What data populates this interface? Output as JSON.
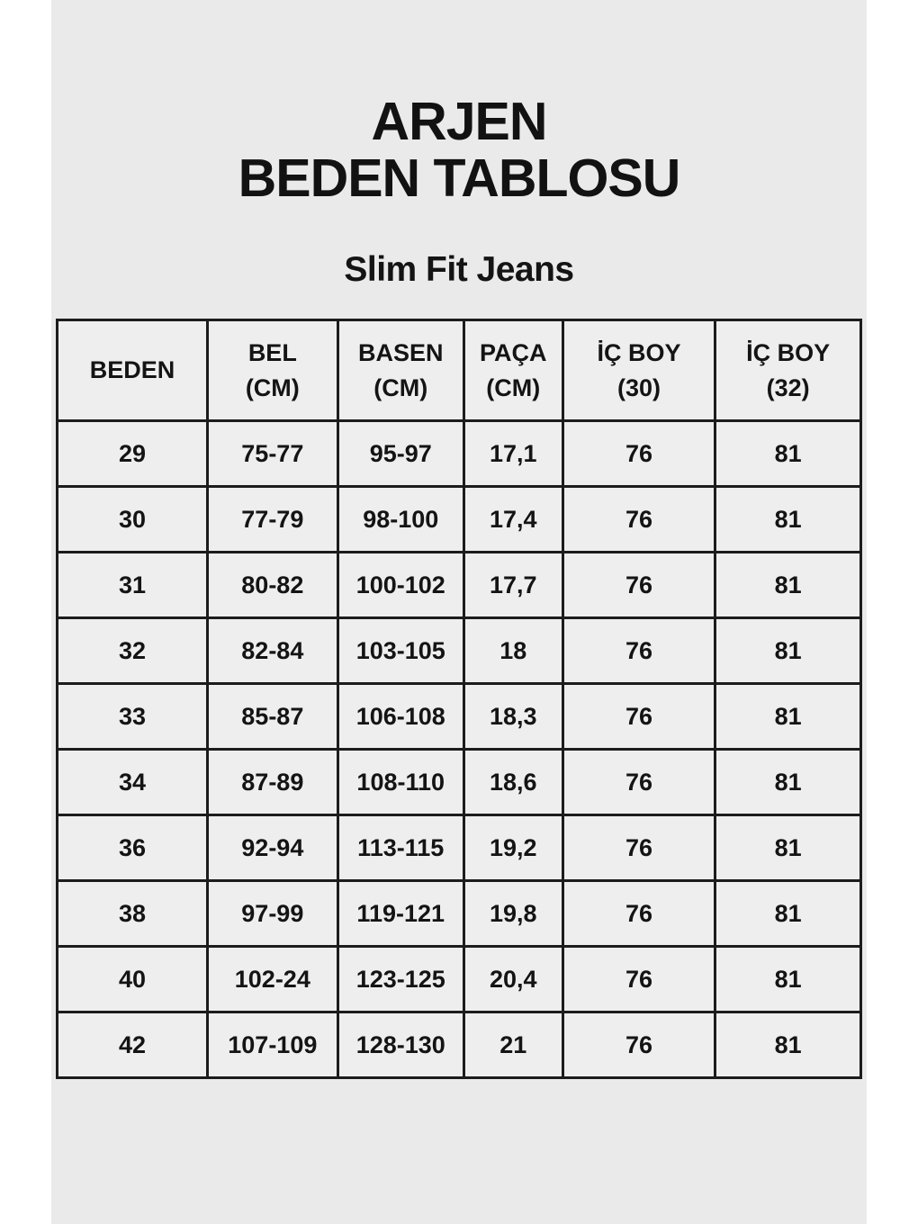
{
  "page": {
    "title_line1": "ARJEN",
    "title_line2": "BEDEN TABLOSU",
    "subtitle": "Slim Fit Jeans"
  },
  "table": {
    "headers": [
      {
        "lines": [
          "BEDEN"
        ]
      },
      {
        "lines": [
          "BEL",
          "(CM)"
        ]
      },
      {
        "lines": [
          "BASEN",
          "(CM)"
        ]
      },
      {
        "lines": [
          "PAÇA",
          "(CM)"
        ]
      },
      {
        "lines": [
          "İÇ BOY",
          "(30)"
        ]
      },
      {
        "lines": [
          "İÇ BOY",
          "(32)"
        ]
      }
    ],
    "rows": [
      [
        "29",
        "75-77",
        "95-97",
        "17,1",
        "76",
        "81"
      ],
      [
        "30",
        "77-79",
        "98-100",
        "17,4",
        "76",
        "81"
      ],
      [
        "31",
        "80-82",
        "100-102",
        "17,7",
        "76",
        "81"
      ],
      [
        "32",
        "82-84",
        "103-105",
        "18",
        "76",
        "81"
      ],
      [
        "33",
        "85-87",
        "106-108",
        "18,3",
        "76",
        "81"
      ],
      [
        "34",
        "87-89",
        "108-110",
        "18,6",
        "76",
        "81"
      ],
      [
        "36",
        "92-94",
        "113-115",
        "19,2",
        "76",
        "81"
      ],
      [
        "38",
        "97-99",
        "119-121",
        "19,8",
        "76",
        "81"
      ],
      [
        "40",
        "102-24",
        "123-125",
        "20,4",
        "76",
        "81"
      ],
      [
        "42",
        "107-109",
        "128-130",
        "21",
        "76",
        "81"
      ]
    ]
  },
  "colors": {
    "page_margin": "#ffffff",
    "panel_background": "#ebeaeb",
    "cell_background": "#efeeef",
    "border": "#1c1c1c",
    "text": "#141414"
  }
}
